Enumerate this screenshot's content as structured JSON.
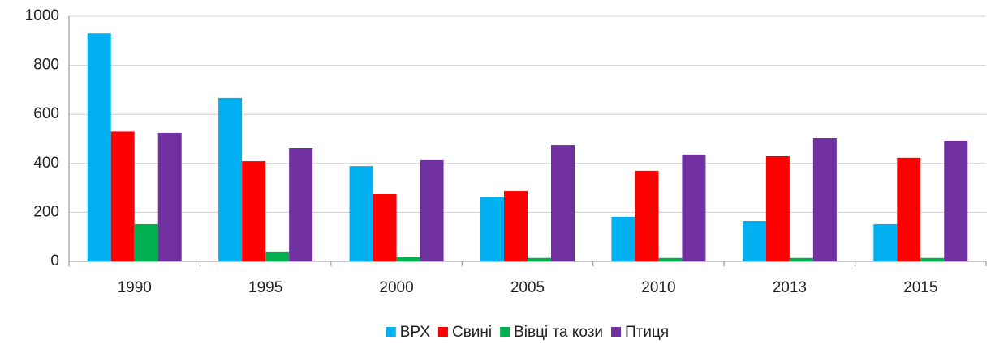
{
  "chart_data": {
    "type": "bar",
    "categories": [
      "1990",
      "1995",
      "2000",
      "2005",
      "2010",
      "2013",
      "2015"
    ],
    "series": [
      {
        "name": "ВРХ",
        "color": "#00b0f0",
        "values": [
          930,
          667,
          389,
          264,
          182,
          165,
          152
        ]
      },
      {
        "name": "Свині",
        "color": "#ff0000",
        "values": [
          530,
          409,
          274,
          287,
          370,
          429,
          423
        ]
      },
      {
        "name": "Вівці та кози",
        "color": "#00b050",
        "values": [
          152,
          40,
          17,
          14,
          14,
          14,
          14
        ]
      },
      {
        "name": "Птиця",
        "color": "#7030a0",
        "values": [
          525,
          462,
          413,
          475,
          436,
          502,
          492
        ]
      }
    ],
    "ylim": [
      0,
      1000
    ],
    "yticks": [
      0,
      200,
      400,
      600,
      800,
      1000
    ],
    "grid": true,
    "legend": "bottom"
  }
}
